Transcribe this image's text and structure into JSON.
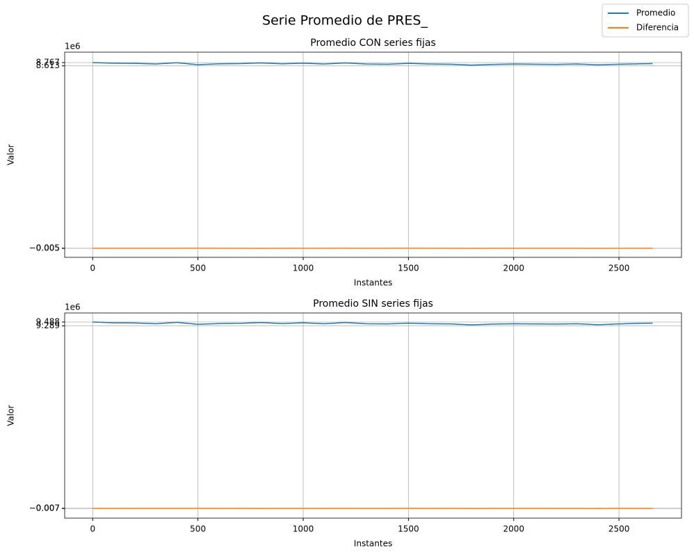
{
  "title": "Serie Promedio de PRES_",
  "legend_corner": "upper right",
  "chart_data": [
    {
      "type": "line",
      "title": "Promedio CON series fijas",
      "xlabel": "Instantes",
      "ylabel": "Valor",
      "y_offset_label": "1e6",
      "x": [
        0,
        100,
        200,
        300,
        400,
        500,
        600,
        700,
        800,
        900,
        1000,
        1100,
        1200,
        1300,
        1400,
        1500,
        1600,
        1700,
        1800,
        1900,
        2000,
        2100,
        2200,
        2300,
        2400,
        2500,
        2600,
        2660
      ],
      "series": [
        {
          "name": "Promedio",
          "color": "#1f77b4",
          "values": [
            8767000,
            8740000,
            8730000,
            8700000,
            8760000,
            8670000,
            8710000,
            8720000,
            8750000,
            8710000,
            8740000,
            8700000,
            8750000,
            8700000,
            8690000,
            8730000,
            8700000,
            8690000,
            8650000,
            8680000,
            8700000,
            8690000,
            8680000,
            8700000,
            8660000,
            8690000,
            8710000,
            8720000
          ]
        },
        {
          "name": "Diferencia",
          "color": "#ff7f0e",
          "values": [
            0,
            1000,
            -2000,
            1500,
            -1000,
            3000,
            -500,
            2000,
            -3000,
            1000,
            0,
            -1500,
            2500,
            -2000,
            500,
            3000,
            -1000,
            1500,
            -2500,
            500,
            -500,
            2000,
            -1500,
            1000,
            -3000,
            1500,
            -500,
            0
          ]
        }
      ],
      "xlim": [
        -133,
        2797
      ],
      "ylim": [
        -427000,
        9260000
      ],
      "xticks": [
        0,
        500,
        1000,
        1500,
        2000,
        2500
      ],
      "yticks": [
        {
          "value": -5000,
          "label": "−0.005"
        },
        {
          "value": 5000,
          "label": "0.005"
        },
        {
          "value": 8613000,
          "label": "8.613"
        },
        {
          "value": 8767000,
          "label": "8.767"
        }
      ],
      "grid": true
    },
    {
      "type": "line",
      "title": "Promedio SIN series fijas",
      "xlabel": "Instantes",
      "ylabel": "Valor",
      "y_offset_label": "1e6",
      "x": [
        0,
        100,
        200,
        300,
        400,
        500,
        600,
        700,
        800,
        900,
        1000,
        1100,
        1200,
        1300,
        1400,
        1500,
        1600,
        1700,
        1800,
        1900,
        2000,
        2100,
        2200,
        2300,
        2400,
        2500,
        2600,
        2660
      ],
      "series": [
        {
          "name": "Promedio",
          "color": "#1f77b4",
          "values": [
            9488000,
            9450000,
            9440000,
            9400000,
            9470000,
            9370000,
            9410000,
            9420000,
            9460000,
            9410000,
            9450000,
            9400000,
            9460000,
            9400000,
            9390000,
            9430000,
            9400000,
            9390000,
            9340000,
            9380000,
            9400000,
            9390000,
            9380000,
            9400000,
            9350000,
            9390000,
            9420000,
            9430000
          ]
        },
        {
          "name": "Diferencia",
          "color": "#ff7f0e",
          "values": [
            0,
            1500,
            -2500,
            2000,
            -1500,
            4000,
            -500,
            2500,
            -4000,
            1500,
            0,
            -2000,
            3000,
            -2500,
            500,
            4000,
            -1500,
            2000,
            -3500,
            500,
            -500,
            2500,
            -2000,
            1500,
            -4000,
            2000,
            -500,
            0
          ]
        }
      ],
      "xlim": [
        -133,
        2797
      ],
      "ylim": [
        -496000,
        9948000
      ],
      "xticks": [
        0,
        500,
        1000,
        1500,
        2000,
        2500
      ],
      "yticks": [
        {
          "value": -7000,
          "label": "−0.007"
        },
        {
          "value": 7000,
          "label": "0.007"
        },
        {
          "value": 9289000,
          "label": "9.289"
        },
        {
          "value": 9488000,
          "label": "9.488"
        }
      ],
      "grid": true
    }
  ]
}
